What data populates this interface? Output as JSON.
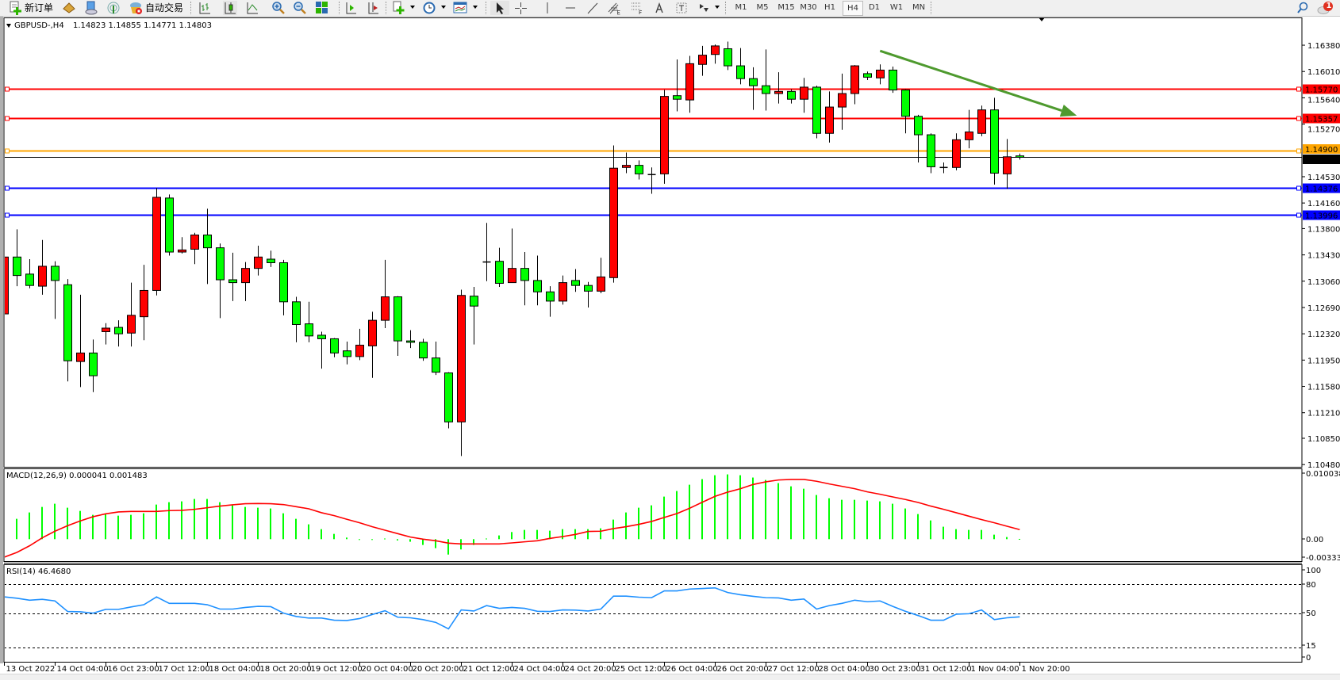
{
  "toolbar": {
    "new_order_label": "新订单",
    "autotrade_label": "自动交易",
    "timeframes": [
      "M1",
      "M5",
      "M15",
      "M30",
      "H1",
      "H4",
      "D1",
      "W1",
      "MN"
    ],
    "active_timeframe": "H4",
    "notification_count": "1"
  },
  "chart_header": {
    "title": "GBPUSD-,H4",
    "ohlc_text": "1.14823 1.14855 1.14771 1.14803"
  },
  "colors": {
    "bull_candle": "#ff0000",
    "bear_candle": "#00ff00",
    "resistance_line": "#ff0000",
    "pivot_line": "#ffa500",
    "support_line": "#0000ff",
    "bid_line": "#000000",
    "trend_arrow": "#4e9a2e",
    "macd_histogram": "#00ff00",
    "macd_signal": "#ff0000",
    "rsi_line": "#1e90ff"
  },
  "chart_data": {
    "type": "candlestick",
    "symbol": "GBPUSD-",
    "timeframe": "H4",
    "ylim": [
      1.1048,
      1.1638
    ],
    "price_ticks": [
      "1.16380",
      "1.16010",
      "1.15640",
      "1.15270",
      "1.14530",
      "1.14160",
      "1.13800",
      "1.13430",
      "1.13060",
      "1.12690",
      "1.12320",
      "1.11950",
      "1.11580",
      "1.11210",
      "1.10850",
      "1.10480"
    ],
    "time_labels": [
      {
        "index": 0,
        "label": "13 Oct 2022"
      },
      {
        "index": 4,
        "label": "14 Oct 04:00"
      },
      {
        "index": 8,
        "label": "16 Oct 23:00"
      },
      {
        "index": 12,
        "label": "17 Oct 12:00"
      },
      {
        "index": 16,
        "label": "18 Oct 04:00"
      },
      {
        "index": 20,
        "label": "18 Oct 20:00"
      },
      {
        "index": 24,
        "label": "19 Oct 12:00"
      },
      {
        "index": 28,
        "label": "20 Oct 04:00"
      },
      {
        "index": 32,
        "label": "20 Oct 20:00"
      },
      {
        "index": 36,
        "label": "21 Oct 12:00"
      },
      {
        "index": 40,
        "label": "24 Oct 04:00"
      },
      {
        "index": 44,
        "label": "24 Oct 20:00"
      },
      {
        "index": 48,
        "label": "25 Oct 12:00"
      },
      {
        "index": 52,
        "label": "26 Oct 04:00"
      },
      {
        "index": 56,
        "label": "26 Oct 20:00"
      },
      {
        "index": 60,
        "label": "27 Oct 12:00"
      },
      {
        "index": 64,
        "label": "28 Oct 04:00"
      },
      {
        "index": 68,
        "label": "30 Oct 23:00"
      },
      {
        "index": 72,
        "label": "31 Oct 12:00"
      },
      {
        "index": 76,
        "label": "1 Nov 04:00"
      },
      {
        "index": 80,
        "label": "1 Nov 20:00"
      }
    ],
    "ohlc": [
      [
        1.126,
        1.1365,
        1.1152,
        1.134
      ],
      [
        1.134,
        1.1379,
        1.1299,
        1.1314
      ],
      [
        1.1316,
        1.1337,
        1.1296,
        1.13
      ],
      [
        1.1299,
        1.1364,
        1.1287,
        1.1327
      ],
      [
        1.1327,
        1.1334,
        1.1253,
        1.1307
      ],
      [
        1.1301,
        1.1309,
        1.1165,
        1.1194
      ],
      [
        1.1193,
        1.1287,
        1.1157,
        1.1205
      ],
      [
        1.1205,
        1.1224,
        1.115,
        1.1173
      ],
      [
        1.1235,
        1.1247,
        1.1217,
        1.124
      ],
      [
        1.1241,
        1.1251,
        1.1214,
        1.1232
      ],
      [
        1.1233,
        1.1304,
        1.1214,
        1.1258
      ],
      [
        1.1256,
        1.1329,
        1.1223,
        1.1293
      ],
      [
        1.1293,
        1.1437,
        1.1286,
        1.1424
      ],
      [
        1.1423,
        1.1428,
        1.1342,
        1.1347
      ],
      [
        1.1347,
        1.1368,
        1.1345,
        1.135
      ],
      [
        1.1351,
        1.1374,
        1.133,
        1.1371
      ],
      [
        1.1371,
        1.1408,
        1.1302,
        1.1353
      ],
      [
        1.1353,
        1.1359,
        1.1254,
        1.1308
      ],
      [
        1.1308,
        1.1346,
        1.1278,
        1.1304
      ],
      [
        1.1304,
        1.1333,
        1.1278,
        1.1324
      ],
      [
        1.1324,
        1.1356,
        1.1314,
        1.134
      ],
      [
        1.1337,
        1.1349,
        1.1326,
        1.1332
      ],
      [
        1.1332,
        1.1336,
        1.1258,
        1.1277
      ],
      [
        1.1277,
        1.1284,
        1.122,
        1.1245
      ],
      [
        1.1246,
        1.1277,
        1.122,
        1.1229
      ],
      [
        1.123,
        1.1235,
        1.1183,
        1.1225
      ],
      [
        1.1225,
        1.1226,
        1.1199,
        1.1205
      ],
      [
        1.1208,
        1.1221,
        1.1189,
        1.12
      ],
      [
        1.12,
        1.1239,
        1.1195,
        1.1216
      ],
      [
        1.1215,
        1.1263,
        1.117,
        1.1251
      ],
      [
        1.1251,
        1.1336,
        1.124,
        1.1284
      ],
      [
        1.1284,
        1.1285,
        1.1201,
        1.1222
      ],
      [
        1.1222,
        1.1237,
        1.1212,
        1.122
      ],
      [
        1.122,
        1.1225,
        1.1194,
        1.1198
      ],
      [
        1.1198,
        1.1221,
        1.1174,
        1.1178
      ],
      [
        1.1177,
        1.1178,
        1.1099,
        1.1108
      ],
      [
        1.1108,
        1.1294,
        1.106,
        1.1286
      ],
      [
        1.1285,
        1.1298,
        1.1217,
        1.1271
      ],
      [
        1.1333,
        1.1388,
        1.1306,
        1.1333
      ],
      [
        1.1334,
        1.1353,
        1.1298,
        1.1303
      ],
      [
        1.1304,
        1.138,
        1.1304,
        1.1324
      ],
      [
        1.1324,
        1.1347,
        1.1272,
        1.1307
      ],
      [
        1.1307,
        1.1342,
        1.1272,
        1.1291
      ],
      [
        1.1291,
        1.1299,
        1.1256,
        1.1278
      ],
      [
        1.1278,
        1.1314,
        1.1273,
        1.1304
      ],
      [
        1.1307,
        1.1323,
        1.1291,
        1.13
      ],
      [
        1.13,
        1.1305,
        1.1269,
        1.1292
      ],
      [
        1.1292,
        1.1339,
        1.1289,
        1.1312
      ],
      [
        1.1311,
        1.1497,
        1.1304,
        1.1465
      ],
      [
        1.1466,
        1.1487,
        1.1458,
        1.1469
      ],
      [
        1.1469,
        1.1476,
        1.1449,
        1.1457
      ],
      [
        1.1456,
        1.1466,
        1.1429,
        1.1456
      ],
      [
        1.1457,
        1.1575,
        1.1443,
        1.1566
      ],
      [
        1.1567,
        1.1618,
        1.1545,
        1.1562
      ],
      [
        1.1561,
        1.1623,
        1.1543,
        1.1612
      ],
      [
        1.1611,
        1.1637,
        1.1595,
        1.1624
      ],
      [
        1.1625,
        1.1639,
        1.1612,
        1.1637
      ],
      [
        1.1633,
        1.1643,
        1.1603,
        1.1609
      ],
      [
        1.1609,
        1.1634,
        1.1583,
        1.1591
      ],
      [
        1.1591,
        1.1607,
        1.1547,
        1.1581
      ],
      [
        1.1581,
        1.1632,
        1.1546,
        1.157
      ],
      [
        1.157,
        1.16,
        1.1556,
        1.1573
      ],
      [
        1.1573,
        1.1576,
        1.1556,
        1.1562
      ],
      [
        1.1562,
        1.1592,
        1.1543,
        1.1579
      ],
      [
        1.1579,
        1.1581,
        1.1507,
        1.1514
      ],
      [
        1.1514,
        1.1573,
        1.1501,
        1.1551
      ],
      [
        1.1551,
        1.1598,
        1.1519,
        1.157
      ],
      [
        1.157,
        1.161,
        1.1555,
        1.1609
      ],
      [
        1.1598,
        1.1601,
        1.1589,
        1.1593
      ],
      [
        1.1592,
        1.1611,
        1.1583,
        1.1603
      ],
      [
        1.1603,
        1.1608,
        1.1571,
        1.1575
      ],
      [
        1.1575,
        1.1576,
        1.1514,
        1.1538
      ],
      [
        1.1538,
        1.154,
        1.1473,
        1.1512
      ],
      [
        1.1512,
        1.1514,
        1.1458,
        1.1467
      ],
      [
        1.1466,
        1.1473,
        1.1458,
        1.1466
      ],
      [
        1.1466,
        1.1514,
        1.1462,
        1.1505
      ],
      [
        1.1505,
        1.1547,
        1.1493,
        1.1516
      ],
      [
        1.1514,
        1.1553,
        1.151,
        1.1547
      ],
      [
        1.1547,
        1.1564,
        1.1442,
        1.1458
      ],
      [
        1.1457,
        1.1506,
        1.1436,
        1.1481
      ],
      [
        1.14823,
        1.14855,
        1.14771,
        1.14803
      ]
    ],
    "horizontal_lines": [
      {
        "price": 1.1577,
        "label": "1.15770",
        "color": "#ff0000",
        "text_color": "#ffffff"
      },
      {
        "price": 1.15357,
        "label": "1.15357",
        "color": "#ff0000",
        "text_color": "#ffffff"
      },
      {
        "price": 1.149,
        "label": "1.14900",
        "color": "#ffa500",
        "text_color": "#ffffff"
      },
      {
        "price": 1.14376,
        "label": "1.14376",
        "color": "#0000ff",
        "text_color": "#ffffff"
      },
      {
        "price": 1.13996,
        "label": "1.13996",
        "color": "#0000ff",
        "text_color": "#ffffff"
      }
    ],
    "bid": {
      "price": 1.14803,
      "label": "1.14803"
    },
    "trend_arrow": {
      "from": {
        "index": 69,
        "price": 1.163
      },
      "to": {
        "index": 84.5,
        "price": 1.1539
      }
    },
    "macd": {
      "label": "MACD(12,26,9) 0.000041 0.001483",
      "axis_labels": [
        "0.010038",
        "0.00",
        "-0.003338"
      ],
      "ylim": [
        -0.003338,
        0.010038
      ],
      "histogram": [
        0.00173,
        0.00317,
        0.00416,
        0.00502,
        0.00552,
        0.0049,
        0.0044,
        0.00379,
        0.00391,
        0.00366,
        0.00379,
        0.00403,
        0.00539,
        0.00576,
        0.00589,
        0.00626,
        0.00626,
        0.00576,
        0.00527,
        0.00502,
        0.0049,
        0.00478,
        0.00403,
        0.00317,
        0.00231,
        0.00156,
        0.00082,
        0.00025,
        -0.0001,
        -0.0001,
        0.0001,
        -0.0002,
        -0.0004,
        -0.0009,
        -0.0014,
        -0.0024,
        -0.0016,
        -0.0009,
        0.0001,
        0.00058,
        0.00111,
        0.00144,
        0.00144,
        0.00132,
        0.00156,
        0.00156,
        0.00156,
        0.00169,
        0.00305,
        0.00416,
        0.0049,
        0.00527,
        0.00663,
        0.0075,
        0.00848,
        0.00935,
        0.00996,
        0.01009,
        0.00996,
        0.0096,
        0.00922,
        0.00873,
        0.00823,
        0.00786,
        0.00688,
        0.00638,
        0.00613,
        0.00613,
        0.00601,
        0.00589,
        0.00552,
        0.00478,
        0.00391,
        0.00292,
        0.00194,
        0.00156,
        0.00144,
        0.00144,
        0.0007,
        0.00033,
        4.1e-05
      ],
      "signal": [
        -0.0028,
        -0.00206,
        -0.00103,
        0.00021,
        0.00124,
        0.0021,
        0.00284,
        0.0035,
        0.00395,
        0.00424,
        0.00432,
        0.00432,
        0.00432,
        0.00445,
        0.00449,
        0.00465,
        0.0049,
        0.00515,
        0.00535,
        0.00552,
        0.00556,
        0.00552,
        0.00539,
        0.00506,
        0.00473,
        0.00412,
        0.00366,
        0.00309,
        0.00255,
        0.00194,
        0.0014,
        0.00086,
        0.00033,
        0.0,
        -0.00025,
        -0.00062,
        -0.00074,
        -0.00074,
        -0.00074,
        -0.00074,
        -0.00058,
        -0.00041,
        -0.00025,
        0.00012,
        0.00041,
        0.00074,
        0.0012,
        0.00124,
        0.00165,
        0.00194,
        0.00231,
        0.00276,
        0.00338,
        0.00399,
        0.00482,
        0.00576,
        0.00667,
        0.00733,
        0.00786,
        0.00852,
        0.00893,
        0.00922,
        0.0093,
        0.0093,
        0.00902,
        0.0086,
        0.00823,
        0.00786,
        0.00737,
        0.007,
        0.00658,
        0.00618,
        0.00572,
        0.00515,
        0.00465,
        0.00412,
        0.00358,
        0.00305,
        0.00255,
        0.00201,
        0.001483
      ]
    },
    "rsi": {
      "label": "RSI(14) 46.4680",
      "axis_labels": [
        "100",
        "80",
        "50",
        "15",
        "0"
      ],
      "levels": [
        80,
        50,
        15
      ],
      "ylim": [
        0,
        100
      ],
      "values": [
        67.1,
        65.7,
        63.7,
        64.6,
        62.9,
        52.0,
        51.7,
        50.3,
        54.2,
        54.2,
        56.7,
        59.0,
        67.1,
        60.4,
        60.4,
        60.4,
        59.0,
        54.5,
        54.5,
        56.2,
        57.3,
        57.0,
        50.3,
        46.9,
        45.2,
        45.2,
        43.0,
        42.7,
        44.7,
        48.9,
        52.8,
        46.1,
        45.5,
        43.6,
        40.7,
        34.0,
        53.6,
        52.5,
        58.1,
        55.3,
        56.2,
        55.3,
        52.2,
        52.0,
        53.6,
        53.4,
        52.5,
        54.5,
        67.9,
        67.9,
        66.8,
        66.3,
        73.3,
        73.3,
        75.2,
        75.8,
        76.4,
        71.6,
        69.3,
        67.7,
        66.3,
        66.0,
        63.7,
        64.9,
        54.5,
        58.1,
        60.4,
        63.7,
        62.1,
        62.9,
        57.3,
        52.2,
        47.8,
        43.0,
        43.0,
        49.2,
        49.7,
        53.6,
        43.6,
        45.5,
        46.468
      ]
    }
  }
}
